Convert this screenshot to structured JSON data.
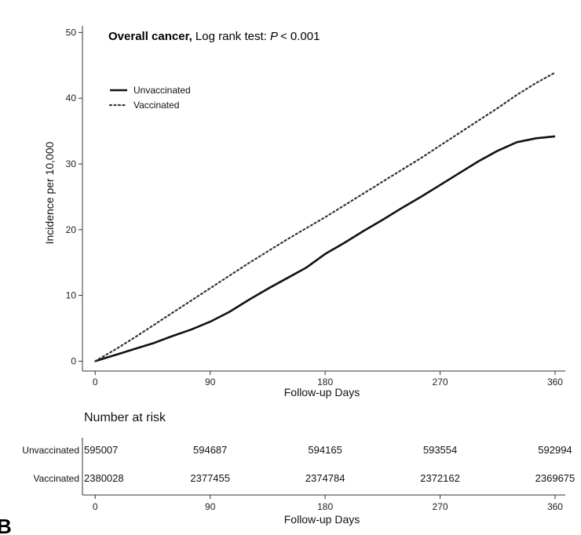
{
  "chart_data": {
    "type": "line",
    "title": {
      "bold": "Overall cancer,",
      "rest": " Log rank test: ",
      "p_symbol": "P",
      "p_value": "< 0.001"
    },
    "xlabel": "Follow-up Days",
    "ylabel": "Incidence per 10,000",
    "xlim": [
      -10,
      368
    ],
    "ylim": [
      -1.5,
      51
    ],
    "x_ticks": [
      0,
      90,
      180,
      270,
      360
    ],
    "y_ticks": [
      0,
      10,
      20,
      30,
      40,
      50
    ],
    "legend_position": "top-left",
    "series": [
      {
        "name": "Unvaccinated",
        "style": "solid",
        "color": "#111111",
        "points": [
          [
            0,
            0
          ],
          [
            10,
            0.6
          ],
          [
            20,
            1.2
          ],
          [
            30,
            1.8
          ],
          [
            45,
            2.7
          ],
          [
            60,
            3.8
          ],
          [
            75,
            4.8
          ],
          [
            90,
            6.0
          ],
          [
            105,
            7.5
          ],
          [
            120,
            9.3
          ],
          [
            135,
            11.0
          ],
          [
            150,
            12.6
          ],
          [
            165,
            14.2
          ],
          [
            180,
            16.3
          ],
          [
            195,
            18.0
          ],
          [
            210,
            19.8
          ],
          [
            225,
            21.5
          ],
          [
            240,
            23.3
          ],
          [
            255,
            25.0
          ],
          [
            270,
            26.8
          ],
          [
            285,
            28.6
          ],
          [
            300,
            30.4
          ],
          [
            315,
            32.0
          ],
          [
            330,
            33.3
          ],
          [
            345,
            33.9
          ],
          [
            360,
            34.2
          ]
        ]
      },
      {
        "name": "Vaccinated",
        "style": "dotted",
        "color": "#333333",
        "points": [
          [
            0,
            0
          ],
          [
            15,
            1.7
          ],
          [
            30,
            3.5
          ],
          [
            45,
            5.4
          ],
          [
            60,
            7.3
          ],
          [
            75,
            9.2
          ],
          [
            90,
            11.1
          ],
          [
            105,
            13.0
          ],
          [
            120,
            14.9
          ],
          [
            135,
            16.7
          ],
          [
            150,
            18.5
          ],
          [
            165,
            20.2
          ],
          [
            180,
            21.9
          ],
          [
            195,
            23.7
          ],
          [
            210,
            25.5
          ],
          [
            225,
            27.3
          ],
          [
            240,
            29.1
          ],
          [
            255,
            30.9
          ],
          [
            270,
            32.8
          ],
          [
            285,
            34.7
          ],
          [
            300,
            36.6
          ],
          [
            315,
            38.5
          ],
          [
            330,
            40.5
          ],
          [
            345,
            42.3
          ],
          [
            360,
            43.9
          ]
        ]
      }
    ]
  },
  "risk_table": {
    "heading": "Number at risk",
    "xlabel": "Follow-up Days",
    "x_ticks": [
      0,
      90,
      180,
      270,
      360
    ],
    "rows": [
      {
        "label": "Unvaccinated",
        "values": [
          "595007",
          "594687",
          "594165",
          "593554",
          "592994"
        ]
      },
      {
        "label": "Vaccinated",
        "values": [
          "2380028",
          "2377455",
          "2374784",
          "2372162",
          "2369675"
        ]
      }
    ]
  },
  "panel_letter": "B"
}
